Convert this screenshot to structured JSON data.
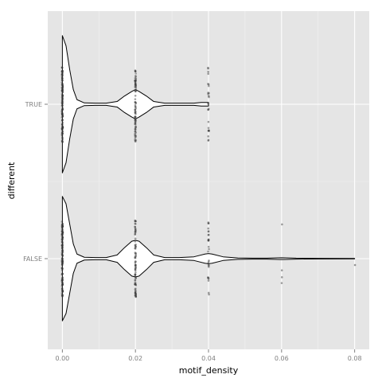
{
  "chart_data": {
    "type": "violin",
    "xlabel": "motif_density",
    "ylabel": "different",
    "xlim": [
      -0.004,
      0.084
    ],
    "xticks": [
      0.0,
      0.02,
      0.04,
      0.06,
      0.08
    ],
    "xtick_labels": [
      "0.00",
      "0.02",
      "0.04",
      "0.06",
      "0.08"
    ],
    "categories": [
      "FALSE",
      "TRUE"
    ],
    "grid": true,
    "colors": {
      "panel_bg": "#e5e5e5",
      "grid_major": "#ffffff",
      "grid_minor": "#f2f2f2",
      "violin_fill": "#ffffff",
      "violin_stroke": "#000000",
      "points": "#333333"
    },
    "series": [
      {
        "category": "TRUE",
        "max_x": 0.04,
        "density": [
          [
            0.0,
            0.75
          ],
          [
            0.001,
            0.64
          ],
          [
            0.002,
            0.38
          ],
          [
            0.003,
            0.16
          ],
          [
            0.004,
            0.05
          ],
          [
            0.006,
            0.015
          ],
          [
            0.009,
            0.012
          ],
          [
            0.012,
            0.012
          ],
          [
            0.015,
            0.03
          ],
          [
            0.017,
            0.09
          ],
          [
            0.019,
            0.14
          ],
          [
            0.02,
            0.16
          ],
          [
            0.021,
            0.14
          ],
          [
            0.023,
            0.09
          ],
          [
            0.025,
            0.03
          ],
          [
            0.028,
            0.012
          ],
          [
            0.032,
            0.012
          ],
          [
            0.036,
            0.012
          ],
          [
            0.038,
            0.02
          ],
          [
            0.04,
            0.02
          ]
        ],
        "point_values": [
          0.0,
          0.02,
          0.04
        ]
      },
      {
        "category": "FALSE",
        "max_x": 0.08,
        "density": [
          [
            0.0,
            0.68
          ],
          [
            0.001,
            0.6
          ],
          [
            0.002,
            0.38
          ],
          [
            0.003,
            0.16
          ],
          [
            0.004,
            0.05
          ],
          [
            0.006,
            0.015
          ],
          [
            0.009,
            0.012
          ],
          [
            0.012,
            0.012
          ],
          [
            0.015,
            0.04
          ],
          [
            0.017,
            0.12
          ],
          [
            0.019,
            0.19
          ],
          [
            0.02,
            0.2
          ],
          [
            0.021,
            0.19
          ],
          [
            0.023,
            0.12
          ],
          [
            0.025,
            0.04
          ],
          [
            0.028,
            0.012
          ],
          [
            0.032,
            0.012
          ],
          [
            0.036,
            0.02
          ],
          [
            0.039,
            0.05
          ],
          [
            0.04,
            0.055
          ],
          [
            0.041,
            0.05
          ],
          [
            0.044,
            0.02
          ],
          [
            0.048,
            0.008
          ],
          [
            0.052,
            0.005
          ],
          [
            0.056,
            0.005
          ],
          [
            0.06,
            0.01
          ],
          [
            0.064,
            0.005
          ],
          [
            0.07,
            0.003
          ],
          [
            0.08,
            0.002
          ]
        ],
        "point_values": [
          0.0,
          0.02,
          0.04,
          0.06,
          0.08
        ]
      }
    ]
  }
}
